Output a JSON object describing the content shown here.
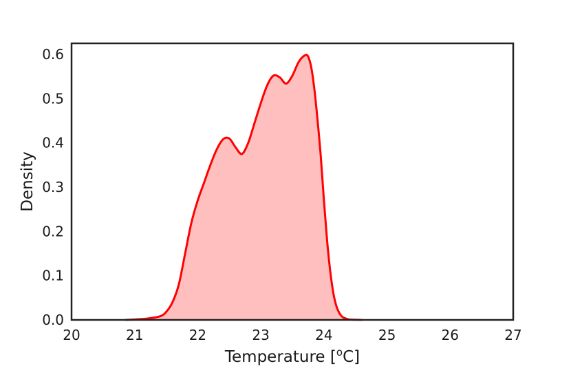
{
  "chart_data": {
    "type": "area",
    "title": "",
    "xlabel": "Temperature [oC]",
    "xlabel_parts": {
      "main": "Temperature [",
      "superscript": "o",
      "end": "C]"
    },
    "ylabel": "Density",
    "xlim": [
      20,
      27
    ],
    "ylim": [
      0,
      0.625
    ],
    "xticks": [
      20,
      21,
      22,
      23,
      24,
      25,
      26,
      27
    ],
    "yticks": [
      0.0,
      0.1,
      0.2,
      0.3,
      0.4,
      0.5,
      0.6
    ],
    "ytick_labels": [
      "0.0",
      "0.1",
      "0.2",
      "0.3",
      "0.4",
      "0.5",
      "0.6"
    ],
    "grid": false,
    "legend": false,
    "series": [
      {
        "line_color": "#ff0000",
        "fill_color": "#ffbfbf",
        "x": [
          20.85,
          21.0,
          21.2,
          21.4,
          21.5,
          21.6,
          21.7,
          21.8,
          21.9,
          22.0,
          22.1,
          22.2,
          22.3,
          22.4,
          22.5,
          22.6,
          22.7,
          22.8,
          22.9,
          23.0,
          23.1,
          23.2,
          23.3,
          23.4,
          23.5,
          23.6,
          23.7,
          23.75,
          23.8,
          23.85,
          23.9,
          23.95,
          24.0,
          24.05,
          24.1,
          24.15,
          24.2,
          24.25,
          24.3,
          24.35,
          24.4,
          24.5,
          24.6
        ],
        "y": [
          0.0,
          0.001,
          0.003,
          0.008,
          0.018,
          0.04,
          0.08,
          0.15,
          0.22,
          0.27,
          0.31,
          0.35,
          0.385,
          0.408,
          0.41,
          0.39,
          0.375,
          0.4,
          0.445,
          0.49,
          0.53,
          0.552,
          0.548,
          0.534,
          0.552,
          0.583,
          0.598,
          0.595,
          0.57,
          0.52,
          0.45,
          0.37,
          0.27,
          0.18,
          0.11,
          0.06,
          0.03,
          0.014,
          0.006,
          0.003,
          0.001,
          0.0003,
          0.0
        ]
      }
    ]
  }
}
